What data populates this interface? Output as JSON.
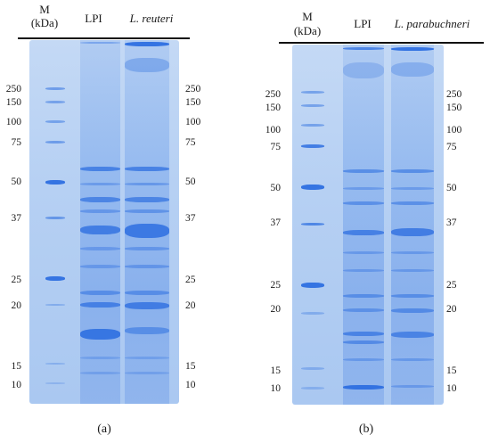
{
  "panel_a": {
    "headers": {
      "marker": "M",
      "marker_unit": "(kDa)",
      "lane1": "LPI",
      "lane2": "L. reuteri"
    },
    "mw_labels_left": [
      "250",
      "150",
      "100",
      "75",
      "50",
      "37",
      "25",
      "20",
      "15",
      "10"
    ],
    "mw_labels_right": [
      "250",
      "150",
      "100",
      "75",
      "50",
      "37",
      "25",
      "20",
      "15",
      "10"
    ],
    "caption": "(a)"
  },
  "panel_b": {
    "headers": {
      "marker": "M",
      "marker_unit": "(kDa)",
      "lane1": "LPI",
      "lane2": "L. parabuchneri"
    },
    "mw_labels_left": [
      "250",
      "150",
      "100",
      "75",
      "50",
      "37",
      "25",
      "20",
      "15",
      "10"
    ],
    "mw_labels_right": [
      "250",
      "150",
      "100",
      "75",
      "50",
      "37",
      "25",
      "20",
      "15",
      "10"
    ],
    "caption": "(b)"
  },
  "colors": {
    "gel_background": "#b6d0f3",
    "band": "#2e6fe0"
  }
}
